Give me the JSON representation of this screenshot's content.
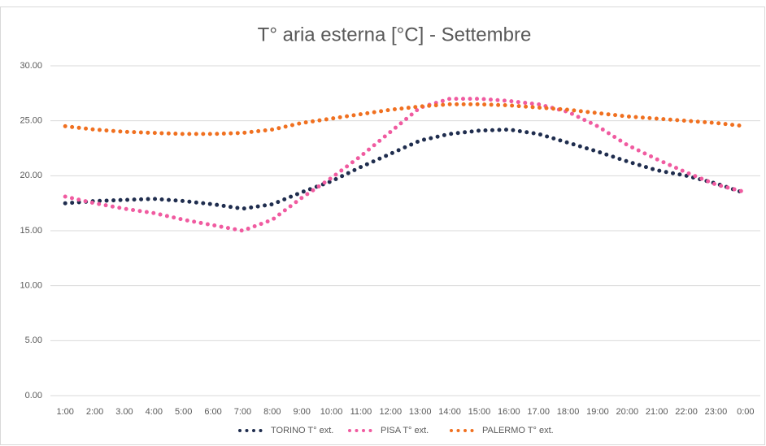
{
  "chart_data": {
    "type": "line",
    "title": "T° aria esterna [°C] -  Settembre",
    "categories": [
      "1:00",
      "2:00",
      "3.00",
      "4:00",
      "5:00",
      "6:00",
      "7:00",
      "8:00",
      "9:00",
      "10:00",
      "11:00",
      "12:00",
      "13:00",
      "14:00",
      "15:00",
      "16:00",
      "17.00",
      "18:00",
      "19:00",
      "20:00",
      "21:00",
      "22:00",
      "23:00",
      "0:00"
    ],
    "series": [
      {
        "name": "TORINO T° ext.",
        "color": "#1f2d4e",
        "values": [
          17.5,
          17.7,
          17.8,
          17.9,
          17.7,
          17.4,
          17.0,
          17.4,
          18.5,
          19.5,
          20.8,
          22.0,
          23.2,
          23.8,
          24.1,
          24.2,
          23.8,
          23.0,
          22.2,
          21.3,
          20.5,
          20.0,
          19.3,
          18.4
        ]
      },
      {
        "name": "PISA T° ext.",
        "color": "#f05ba0",
        "values": [
          18.1,
          17.5,
          17.0,
          16.6,
          16.0,
          15.5,
          15.0,
          16.0,
          18.0,
          19.8,
          21.8,
          24.0,
          26.2,
          27.0,
          27.0,
          26.8,
          26.5,
          25.8,
          24.5,
          22.8,
          21.5,
          20.3,
          19.2,
          18.5
        ]
      },
      {
        "name": "PALERMO T° ext.",
        "color": "#f07020",
        "values": [
          24.5,
          24.2,
          24.0,
          23.9,
          23.8,
          23.8,
          23.9,
          24.2,
          24.8,
          25.2,
          25.6,
          26.0,
          26.3,
          26.5,
          26.5,
          26.4,
          26.2,
          26.0,
          25.7,
          25.4,
          25.2,
          25.0,
          24.8,
          24.5
        ]
      }
    ],
    "ylim": [
      0,
      30
    ],
    "yticks": [
      {
        "value": 0,
        "label": "0.00"
      },
      {
        "value": 5,
        "label": "5.00"
      },
      {
        "value": 10,
        "label": "10.00"
      },
      {
        "value": 15,
        "label": "15.00"
      },
      {
        "value": 20,
        "label": "20.00"
      },
      {
        "value": 25,
        "label": "25.00"
      },
      {
        "value": 30,
        "label": "30.00"
      }
    ],
    "grid": true,
    "legend": "bottom"
  }
}
